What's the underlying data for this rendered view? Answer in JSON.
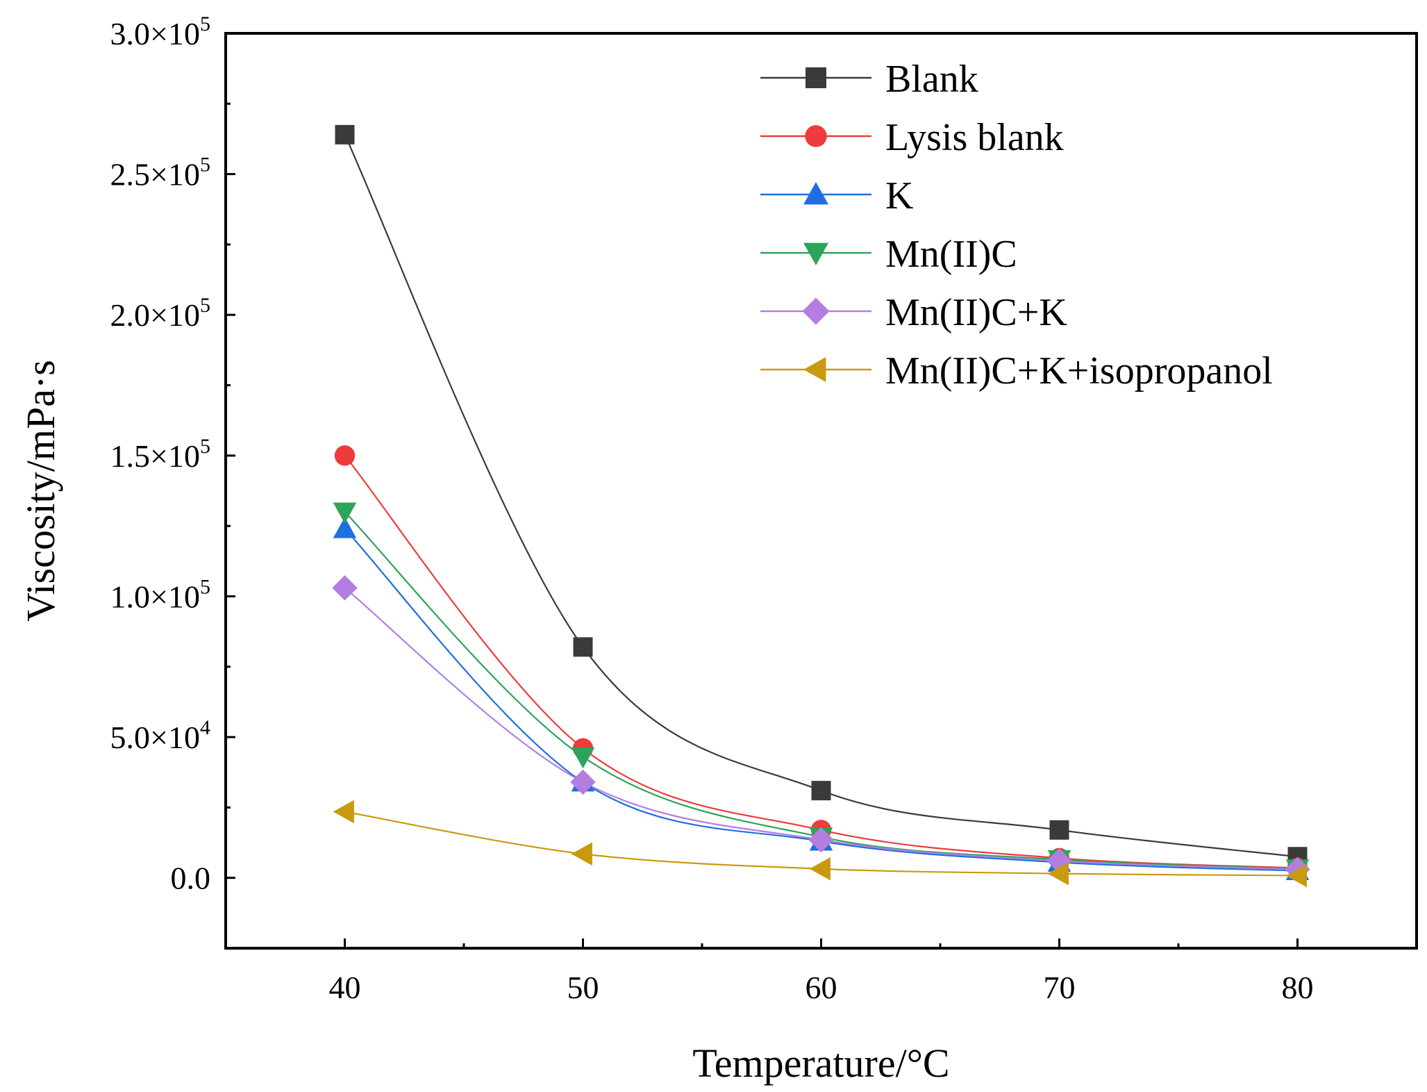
{
  "chart_data": {
    "type": "line",
    "title": "",
    "xlabel": "Temperature/°C",
    "ylabel": "Viscosity/mPa·s",
    "x": [
      40,
      50,
      60,
      70,
      80
    ],
    "xlim": [
      35,
      85
    ],
    "ylim": [
      -25000,
      300000
    ],
    "xticks": [
      40,
      50,
      60,
      70,
      80
    ],
    "xtick_labels": [
      "40",
      "50",
      "60",
      "70",
      "80"
    ],
    "yticks": [
      0,
      50000,
      100000,
      150000,
      200000,
      250000,
      300000
    ],
    "ytick_labels": [
      {
        "mantissa": "0.0",
        "times": "",
        "exp": ""
      },
      {
        "mantissa": "5.0",
        "times": "×10",
        "exp": "4"
      },
      {
        "mantissa": "1.0",
        "times": "×10",
        "exp": "5"
      },
      {
        "mantissa": "1.5",
        "times": "×10",
        "exp": "5"
      },
      {
        "mantissa": "2.0",
        "times": "×10",
        "exp": "5"
      },
      {
        "mantissa": "2.5",
        "times": "×10",
        "exp": "5"
      },
      {
        "mantissa": "3.0",
        "times": "×10",
        "exp": "5"
      }
    ],
    "legend_position": "top-right",
    "series": [
      {
        "name": "Blank",
        "color": "#3a3a3a",
        "marker": "square",
        "values": [
          264000,
          82000,
          31000,
          17000,
          7500
        ]
      },
      {
        "name": "Lysis blank",
        "color": "#ee3b3b",
        "marker": "circle",
        "values": [
          150000,
          46000,
          17000,
          7000,
          3500
        ]
      },
      {
        "name": "K",
        "color": "#1f6fe0",
        "marker": "triangle-up",
        "values": [
          124000,
          34000,
          13000,
          5500,
          2500
        ]
      },
      {
        "name": "Mn(II)C",
        "color": "#2ea35a",
        "marker": "triangle-down",
        "values": [
          130000,
          43000,
          14500,
          6500,
          3200
        ]
      },
      {
        "name": "Mn(II)C+K",
        "color": "#b27ee0",
        "marker": "diamond",
        "values": [
          103000,
          34000,
          13500,
          6000,
          3000
        ]
      },
      {
        "name": "Mn(II)C+K+isopropanol",
        "color": "#c99a10",
        "marker": "triangle-left",
        "values": [
          23500,
          8500,
          3200,
          1500,
          800
        ]
      }
    ]
  }
}
